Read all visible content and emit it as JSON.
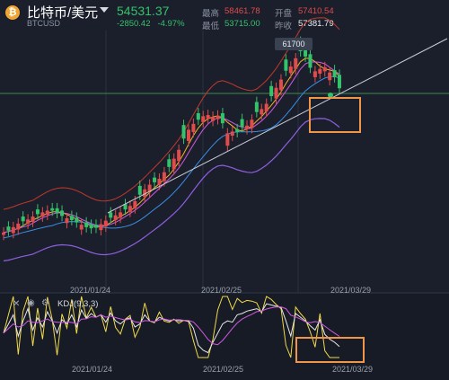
{
  "header": {
    "pair": "比特币/美元",
    "symbol": "BTCUSD",
    "last": "54531.37",
    "change": "-2850.42",
    "change_pct": "-4.97%",
    "high_label": "最高",
    "high": "58461.78",
    "open_label": "开盘",
    "open": "57410.54",
    "low_label": "最低",
    "low": "53715.00",
    "close_label": "昨收",
    "close": "57381.79"
  },
  "indicator": {
    "label": "KDJ(9,3,3)"
  },
  "dates": [
    "2021/01/24",
    "2021/02/25",
    "2021/03/29"
  ],
  "peak_label": "61700",
  "icons": [
    "close-icon",
    "eye-icon",
    "gear-icon"
  ],
  "colors": {
    "up": "#e04b4b",
    "down": "#34c26a",
    "bg": "#1b1f2b",
    "highlight": "#f0954a"
  },
  "chart_data": {
    "type": "candlestick",
    "x_ticks": [
      "2021/01/24",
      "2021/02/25",
      "2021/03/29"
    ],
    "annotation": "61700",
    "last_price": 54531.37,
    "trend": [
      30100,
      30400,
      31000,
      31600,
      32000,
      32300,
      32800,
      33200,
      33500,
      33800,
      33800,
      33400,
      32900,
      32500,
      32200,
      31800,
      31400,
      31000,
      30800,
      30900,
      31500,
      32100,
      32600,
      33000,
      33500,
      34000,
      34600,
      35400,
      36500,
      37400,
      38200,
      38600,
      39200,
      40300,
      41200,
      42600,
      44100,
      46000,
      47500,
      48500,
      49200,
      49800,
      50000,
      49700,
      49900,
      48600,
      46900,
      47200,
      47100,
      48000,
      48200,
      49200,
      50500,
      51000,
      51900,
      53200,
      54600,
      56000,
      57500,
      58200,
      59600,
      60800,
      59900,
      58000,
      57400,
      57800,
      58100,
      57200,
      56400,
      54531
    ],
    "kdj_note": "K, D, J lines"
  }
}
